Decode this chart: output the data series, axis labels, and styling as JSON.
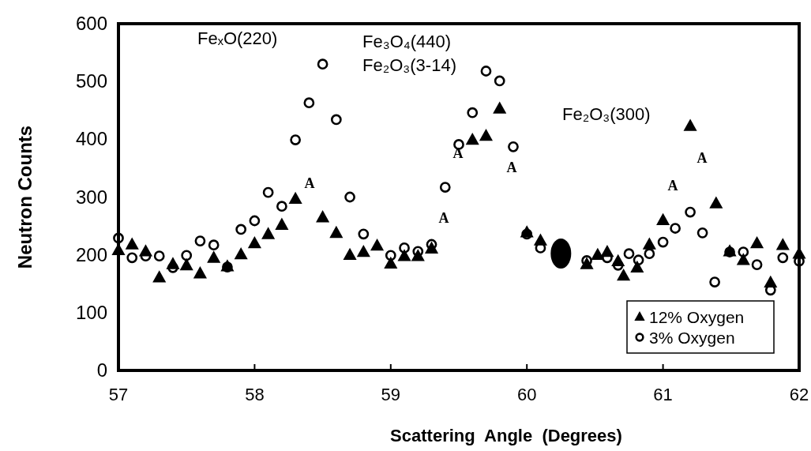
{
  "chart_data": {
    "type": "scatter",
    "xlabel": "Scattering  Angle  (Degrees)",
    "ylabel": "Neutron Counts",
    "xlim": [
      57,
      62
    ],
    "xticks": [
      57,
      58,
      59,
      60,
      61,
      62
    ],
    "ylim": [
      0,
      600
    ],
    "yticks": [
      0,
      100,
      200,
      300,
      400,
      500,
      600
    ],
    "grid": false,
    "legend": "bottom right",
    "series": [
      {
        "name": "12% Oxygen",
        "color": "#000000",
        "marker": "triangle",
        "x": [
          57.0,
          57.1,
          57.2,
          57.3,
          57.4,
          57.5,
          57.6,
          57.7,
          57.8,
          57.9,
          58.0,
          58.1,
          58.2,
          58.3,
          58.5,
          58.6,
          58.7,
          58.8,
          58.9,
          59.0,
          59.1,
          59.2,
          59.3,
          59.6,
          59.7,
          59.8,
          60.0,
          60.1,
          60.44,
          60.52,
          60.59,
          60.67,
          60.71,
          60.81,
          60.9,
          61.0,
          61.2,
          61.39,
          61.49,
          61.59,
          61.69,
          61.79,
          61.88,
          62.0
        ],
        "values": [
          208,
          218,
          206,
          161,
          184,
          182,
          168,
          195,
          180,
          201,
          220,
          236,
          252,
          297,
          265,
          238,
          200,
          205,
          216,
          185,
          198,
          198,
          211,
          399,
          406,
          453,
          239,
          225,
          184,
          200,
          205,
          189,
          164,
          178,
          218,
          260,
          423,
          289,
          206,
          191,
          220,
          152,
          217,
          202
        ]
      },
      {
        "name": "3% Oxygen",
        "color": "#000000",
        "marker": "circle",
        "x": [
          57.0,
          57.1,
          57.2,
          57.3,
          57.4,
          57.5,
          57.6,
          57.7,
          57.8,
          57.9,
          58.0,
          58.1,
          58.2,
          58.3,
          58.4,
          58.5,
          58.6,
          58.7,
          58.8,
          59.0,
          59.1,
          59.2,
          59.3,
          59.4,
          59.5,
          59.6,
          59.7,
          59.8,
          59.9,
          60.0,
          60.1,
          60.44,
          60.59,
          60.67,
          60.75,
          60.82,
          60.9,
          61.0,
          61.09,
          61.2,
          61.29,
          61.38,
          61.49,
          61.59,
          61.69,
          61.79,
          61.88,
          62.0
        ],
        "values": [
          229,
          195,
          198,
          198,
          178,
          199,
          224,
          217,
          179,
          244,
          259,
          308,
          284,
          399,
          463,
          530,
          434,
          300,
          236,
          199,
          212,
          206,
          218,
          317,
          391,
          446,
          518,
          501,
          387,
          236,
          212,
          190,
          195,
          182,
          202,
          191,
          202,
          222,
          246,
          274,
          238,
          153,
          205,
          205,
          183,
          139,
          195,
          189
        ]
      }
    ],
    "annotations": [
      "FeₓO(220)",
      "Fe₃O₄(440)",
      "Fe₂O₃(3-14)",
      "Fe₂O₃(300)",
      "A",
      "A",
      "A",
      "A",
      "A",
      "A"
    ]
  }
}
